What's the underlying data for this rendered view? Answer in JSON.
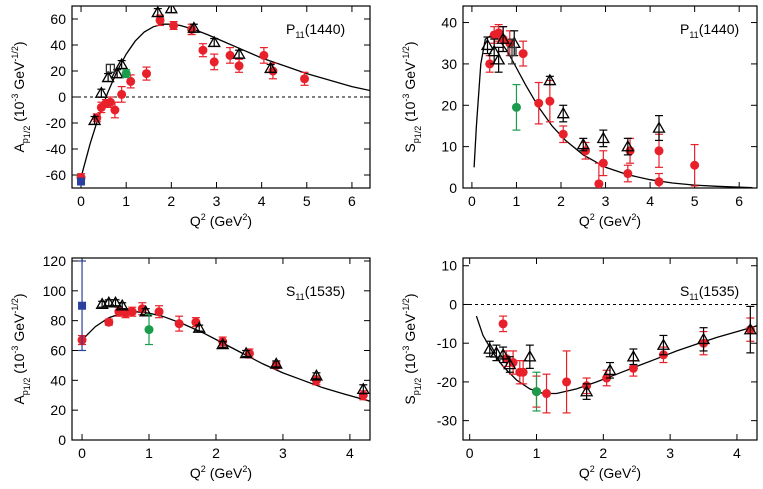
{
  "chart_data": [
    {
      "type": "scatter",
      "id": "p11-A12",
      "resonance": {
        "main": "P",
        "sub": "11",
        "tail": "(1440)"
      },
      "ylabel": {
        "a": "A",
        "sub": "p",
        "subsub": "1/2",
        "unit": "(10",
        "exp": "-3",
        "unit2": " GeV",
        "exp2": "-1/2",
        "close": ")"
      },
      "xlabel": {
        "q": "Q",
        "sup": "2",
        "unit": " (GeV",
        "sup2": "2",
        "close": ")"
      },
      "xlim": [
        -0.2,
        6.4
      ],
      "ylim": [
        -70,
        70
      ],
      "xticks": [
        0,
        1,
        2,
        3,
        4,
        5,
        6
      ],
      "yticks": [
        -60,
        -40,
        -20,
        0,
        20,
        40,
        60
      ],
      "zero_line": true,
      "curve": {
        "x": [
          0,
          0.2,
          0.4,
          0.6,
          0.8,
          1.0,
          1.2,
          1.4,
          1.6,
          1.8,
          2.0,
          2.2,
          2.5,
          2.8,
          3.2,
          3.6,
          4.0,
          4.5,
          5.0,
          5.5,
          6.0,
          6.4
        ],
        "y": [
          -62,
          -36,
          -14,
          4,
          20,
          33,
          43,
          50,
          54,
          56,
          56,
          55,
          52,
          48,
          42,
          36,
          30,
          24,
          18,
          13,
          8,
          5
        ]
      },
      "series": [
        {
          "name": "red",
          "color": "#e8202a",
          "marker": "circle",
          "points": [
            [
              0,
              -62,
              3
            ],
            [
              0.35,
              -16,
              3
            ],
            [
              0.45,
              -8,
              4
            ],
            [
              0.55,
              -5,
              3
            ],
            [
              0.65,
              -4,
              4
            ],
            [
              0.75,
              -10,
              6
            ],
            [
              0.9,
              2,
              6
            ],
            [
              1.1,
              12,
              5
            ],
            [
              1.45,
              18,
              5
            ],
            [
              1.75,
              59,
              4
            ],
            [
              2.05,
              55,
              3
            ],
            [
              2.45,
              52,
              4
            ],
            [
              2.7,
              36,
              5
            ],
            [
              2.95,
              27,
              6
            ],
            [
              3.3,
              32,
              6
            ],
            [
              3.5,
              24,
              5
            ],
            [
              4.05,
              32,
              6
            ],
            [
              4.25,
              20,
              6
            ],
            [
              4.95,
              14,
              5
            ]
          ]
        },
        {
          "name": "triangles",
          "color": "#000000",
          "marker": "triangle-open",
          "points": [
            [
              0.3,
              -18,
              3
            ],
            [
              0.45,
              3,
              3
            ],
            [
              0.6,
              15,
              3
            ],
            [
              0.8,
              18,
              3
            ],
            [
              0.9,
              25,
              3
            ],
            [
              1.7,
              65,
              3
            ],
            [
              2.0,
              68,
              3
            ],
            [
              2.5,
              53,
              3
            ],
            [
              2.95,
              42,
              3
            ],
            [
              3.5,
              33,
              3
            ],
            [
              4.2,
              22,
              3
            ]
          ]
        },
        {
          "name": "squares",
          "color": "#333333",
          "marker": "square-open",
          "points": [
            [
              0.65,
              22,
              3
            ]
          ]
        },
        {
          "name": "green",
          "color": "#1a9c4c",
          "marker": "circle",
          "points": [
            [
              1.0,
              18,
              3
            ]
          ]
        },
        {
          "name": "blue",
          "color": "#2b3f9e",
          "marker": "square",
          "points": [
            [
              0,
              -65,
              2
            ]
          ]
        }
      ]
    },
    {
      "type": "scatter",
      "id": "p11-S12",
      "resonance": {
        "main": "P",
        "sub": "11",
        "tail": "(1440)"
      },
      "ylabel": {
        "a": "S",
        "sub": "p",
        "subsub": "1/2",
        "unit": "(10",
        "exp": "-3",
        "unit2": " GeV",
        "exp2": "-1/2",
        "close": ")"
      },
      "xlabel": {
        "q": "Q",
        "sup": "2",
        "unit": " (GeV",
        "sup2": "2",
        "close": ")"
      },
      "xlim": [
        -0.2,
        6.4
      ],
      "ylim": [
        0,
        44
      ],
      "xticks": [
        0,
        1,
        2,
        3,
        4,
        5,
        6
      ],
      "yticks": [
        0,
        10,
        20,
        30,
        40
      ],
      "zero_line": false,
      "curve": {
        "x": [
          0.05,
          0.1,
          0.2,
          0.3,
          0.45,
          0.6,
          0.8,
          1.0,
          1.2,
          1.5,
          1.8,
          2.1,
          2.5,
          3.0,
          3.5,
          4.0,
          4.5,
          5.0,
          5.5,
          6.0,
          6.3
        ],
        "y": [
          5,
          15,
          30,
          36,
          37,
          36,
          33,
          29,
          25,
          19.5,
          15,
          11.5,
          8,
          5,
          3.2,
          2,
          1.2,
          0.7,
          0.4,
          0.2,
          0.1
        ]
      },
      "series": [
        {
          "name": "red",
          "color": "#e8202a",
          "marker": "circle",
          "points": [
            [
              0.4,
              30,
              2
            ],
            [
              0.5,
              37,
              2
            ],
            [
              0.6,
              37.5,
              2
            ],
            [
              0.7,
              36,
              3
            ],
            [
              0.85,
              35,
              3
            ],
            [
              1.15,
              32.5,
              3
            ],
            [
              1.5,
              20.5,
              5
            ],
            [
              1.75,
              21,
              5
            ],
            [
              2.05,
              13,
              2
            ],
            [
              2.55,
              9,
              2
            ],
            [
              2.95,
              6,
              3
            ],
            [
              2.85,
              1,
              5
            ],
            [
              3.5,
              3.5,
              2
            ],
            [
              3.55,
              9,
              3
            ],
            [
              4.2,
              9,
              4
            ],
            [
              4.2,
              1.5,
              2
            ],
            [
              5.0,
              5.5,
              5
            ]
          ]
        },
        {
          "name": "triangles",
          "color": "#000000",
          "marker": "triangle-open",
          "points": [
            [
              0.35,
              34.5,
              2
            ],
            [
              0.5,
              33,
              3
            ],
            [
              0.6,
              31,
              3
            ],
            [
              0.7,
              36,
              3
            ],
            [
              0.95,
              35,
              3
            ],
            [
              1.75,
              26,
              1
            ],
            [
              2.05,
              18,
              2
            ],
            [
              2.5,
              10.5,
              1.5
            ],
            [
              2.95,
              12,
              2
            ],
            [
              3.5,
              10,
              2
            ],
            [
              4.2,
              14.5,
              3
            ]
          ]
        },
        {
          "name": "squares",
          "color": "#333333",
          "marker": "square-open",
          "points": [
            [
              0.9,
              33,
              3
            ]
          ]
        },
        {
          "name": "green",
          "color": "#1a9c4c",
          "marker": "circle",
          "points": [
            [
              1.0,
              19.5,
              5.5
            ]
          ]
        }
      ]
    },
    {
      "type": "scatter",
      "id": "s11-A12",
      "resonance": {
        "main": "S",
        "sub": "11",
        "tail": "(1535)"
      },
      "ylabel": {
        "a": "A",
        "sub": "p",
        "subsub": "1/2",
        "unit": "(10",
        "exp": "-3",
        "unit2": " GeV",
        "exp2": "-1/2",
        "close": ")"
      },
      "xlabel": {
        "q": "Q",
        "sup": "2",
        "unit": " (GeV",
        "sup2": "2",
        "close": ")"
      },
      "xlim": [
        -0.15,
        4.3
      ],
      "ylim": [
        0,
        122
      ],
      "xticks": [
        0,
        1,
        2,
        3,
        4
      ],
      "yticks": [
        0,
        20,
        40,
        60,
        80,
        100,
        120
      ],
      "zero_line": false,
      "curve": {
        "x": [
          0,
          0.2,
          0.4,
          0.6,
          0.8,
          1.0,
          1.2,
          1.5,
          1.8,
          2.1,
          2.4,
          2.7,
          3.0,
          3.3,
          3.6,
          3.9,
          4.3
        ],
        "y": [
          67,
          76,
          82,
          85,
          86,
          85,
          83,
          78,
          72,
          65,
          58,
          51,
          45,
          40,
          35,
          31,
          26
        ]
      },
      "series": [
        {
          "name": "red",
          "color": "#e8202a",
          "marker": "circle",
          "points": [
            [
              0,
              67,
              3
            ],
            [
              0.4,
              79,
              2
            ],
            [
              0.55,
              86,
              3
            ],
            [
              0.65,
              85,
              3
            ],
            [
              0.75,
              86,
              3
            ],
            [
              0.9,
              88,
              4
            ],
            [
              1.15,
              86,
              4
            ],
            [
              1.45,
              78,
              5
            ],
            [
              1.7,
              79,
              3
            ],
            [
              2.1,
              66,
              3
            ],
            [
              2.5,
              58,
              3
            ],
            [
              2.9,
              50,
              2
            ],
            [
              3.5,
              40,
              3
            ],
            [
              4.2,
              30,
              3
            ]
          ]
        },
        {
          "name": "triangles",
          "color": "#000000",
          "marker": "triangle-open",
          "points": [
            [
              0.3,
              91,
              2
            ],
            [
              0.4,
              92,
              2
            ],
            [
              0.5,
              92,
              2
            ],
            [
              0.6,
              90,
              2
            ],
            [
              0.95,
              86,
              2
            ],
            [
              1.75,
              75,
              2
            ],
            [
              2.1,
              64,
              2
            ],
            [
              2.45,
              58,
              2
            ],
            [
              2.9,
              51,
              2
            ],
            [
              3.5,
              43,
              2
            ],
            [
              4.2,
              34,
              3
            ]
          ]
        },
        {
          "name": "green",
          "color": "#1a9c4c",
          "marker": "circle",
          "points": [
            [
              1.0,
              74,
              10
            ]
          ]
        },
        {
          "name": "blue",
          "color": "#2b3f9e",
          "marker": "square",
          "points": [
            [
              0,
              90,
              30
            ]
          ]
        }
      ]
    },
    {
      "type": "scatter",
      "id": "s11-S12",
      "resonance": {
        "main": "S",
        "sub": "11",
        "tail": "(1535)"
      },
      "ylabel": {
        "a": "S",
        "sub": "p",
        "subsub": "1/2",
        "unit": "(10",
        "exp": "-3",
        "unit2": " GeV",
        "exp2": "-1/2",
        "close": ")"
      },
      "xlabel": {
        "q": "Q",
        "sup": "2",
        "unit": " (GeV",
        "sup2": "2",
        "close": ")"
      },
      "xlim": [
        -0.1,
        4.3
      ],
      "ylim": [
        -35,
        12
      ],
      "xticks": [
        0,
        1,
        2,
        3,
        4
      ],
      "yticks": [
        -30,
        -20,
        -10,
        0,
        10
      ],
      "zero_line": true,
      "curve": {
        "x": [
          0.1,
          0.2,
          0.35,
          0.5,
          0.7,
          0.9,
          1.1,
          1.3,
          1.6,
          1.9,
          2.2,
          2.5,
          2.8,
          3.1,
          3.4,
          3.7,
          4.0,
          4.3
        ],
        "y": [
          -3,
          -8,
          -12.5,
          -16,
          -19.5,
          -21.8,
          -23,
          -23,
          -21.8,
          -20,
          -18,
          -16,
          -14,
          -12,
          -10.2,
          -8.5,
          -7,
          -5.5
        ]
      },
      "series": [
        {
          "name": "red",
          "color": "#e8202a",
          "marker": "circle",
          "points": [
            [
              0.5,
              -5,
              2
            ],
            [
              0.55,
              -14,
              2
            ],
            [
              0.65,
              -15,
              3
            ],
            [
              0.75,
              -17.5,
              3
            ],
            [
              0.8,
              -17.5,
              3
            ],
            [
              1.0,
              -22.5,
              4
            ],
            [
              1.15,
              -23,
              5
            ],
            [
              1.45,
              -20,
              8
            ],
            [
              1.75,
              -21,
              2
            ],
            [
              2.05,
              -19,
              2
            ],
            [
              2.45,
              -16.5,
              2
            ],
            [
              2.9,
              -13,
              2
            ],
            [
              3.5,
              -10,
              3
            ],
            [
              4.2,
              -6.5,
              3
            ]
          ]
        },
        {
          "name": "triangles",
          "color": "#000000",
          "marker": "triangle-open",
          "points": [
            [
              0.3,
              -11.5,
              2
            ],
            [
              0.4,
              -12.5,
              2
            ],
            [
              0.5,
              -13,
              2
            ],
            [
              0.6,
              -15.5,
              2
            ],
            [
              0.9,
              -13.5,
              3
            ],
            [
              1.75,
              -22.5,
              2
            ],
            [
              2.1,
              -17,
              2
            ],
            [
              2.45,
              -13.5,
              2
            ],
            [
              2.9,
              -10.5,
              2.5
            ],
            [
              3.5,
              -9,
              3
            ],
            [
              4.2,
              -6.5,
              6
            ]
          ]
        },
        {
          "name": "green",
          "color": "#1a9c4c",
          "marker": "circle",
          "points": [
            [
              1.0,
              -22.5,
              5
            ]
          ]
        }
      ]
    }
  ]
}
